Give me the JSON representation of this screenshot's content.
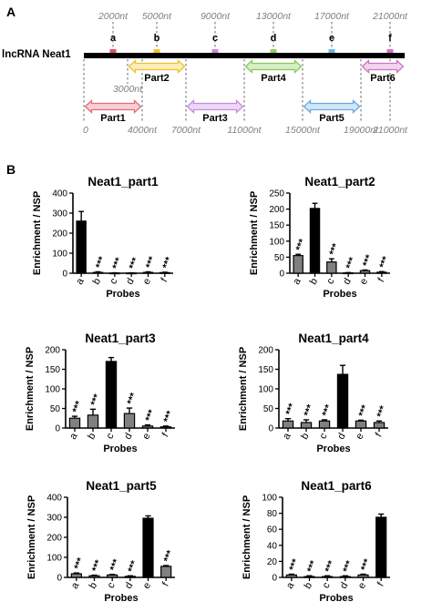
{
  "panel_a": {
    "label": "A",
    "gene_label": "lncRNA Neat1",
    "probe_positions": [
      {
        "letter": "a",
        "nt": 2000,
        "text": "2000nt",
        "color": "#e0506a"
      },
      {
        "letter": "b",
        "nt": 5000,
        "text": "5000nt",
        "color": "#f2c22a"
      },
      {
        "letter": "c",
        "nt": 9000,
        "text": "9000nt",
        "color": "#c98be0"
      },
      {
        "letter": "d",
        "nt": 13000,
        "text": "13000nt",
        "color": "#8fd060"
      },
      {
        "letter": "e",
        "nt": 17000,
        "text": "17000nt",
        "color": "#6cb6e6"
      },
      {
        "letter": "f",
        "nt": 21000,
        "text": "21000nt",
        "color": "#d070c8"
      }
    ],
    "parts": [
      {
        "name": "Part1",
        "start": 0,
        "end": 4000,
        "row": "lower",
        "color": "#e86a7a",
        "fill": "#f7d0d6"
      },
      {
        "name": "Part2",
        "start": 3000,
        "end": 7000,
        "row": "upper",
        "color": "#f0c030",
        "fill": "#fbefb8"
      },
      {
        "name": "Part3",
        "start": 7000,
        "end": 11000,
        "row": "lower",
        "color": "#c88ae0",
        "fill": "#ecd8f4"
      },
      {
        "name": "Part4",
        "start": 11000,
        "end": 15000,
        "row": "upper",
        "color": "#86c85a",
        "fill": "#d6efc6"
      },
      {
        "name": "Part5",
        "start": 15000,
        "end": 19000,
        "row": "lower",
        "color": "#6aa8e0",
        "fill": "#d2e6f6"
      },
      {
        "name": "Part6",
        "start": 19000,
        "end": 22000,
        "row": "upper",
        "color": "#d070c8",
        "fill": "#f2d4ee"
      }
    ],
    "coord_labels_upper": [
      {
        "nt": 3000,
        "text": "3000nt"
      }
    ],
    "coord_labels_lower": [
      {
        "nt": 0,
        "text": "0"
      },
      {
        "nt": 4000,
        "text": "4000nt"
      },
      {
        "nt": 7000,
        "text": "7000nt"
      },
      {
        "nt": 11000,
        "text": "11000nt"
      },
      {
        "nt": 15000,
        "text": "15000nt"
      },
      {
        "nt": 19000,
        "text": "19000nt"
      },
      {
        "nt": 21000,
        "text": "21000nt"
      }
    ]
  },
  "panel_b": {
    "label": "B"
  },
  "chart_data": [
    {
      "type": "bar",
      "title": "Neat1_part1",
      "ylabel": "Enrichment / NSP",
      "xlabel": "Probes",
      "categories": [
        "a",
        "b",
        "c",
        "d",
        "e",
        "f"
      ],
      "values": [
        260,
        4,
        1,
        1,
        4,
        3
      ],
      "errors": [
        48,
        3,
        1,
        1,
        3,
        2
      ],
      "highlight": [
        0
      ],
      "significance": [
        "",
        "***",
        "***",
        "***",
        "***",
        "***"
      ],
      "ylim": [
        0,
        400
      ],
      "yticks": [
        0,
        100,
        200,
        300,
        400
      ],
      "colors": {
        "highlight": "#000000",
        "other": "#808080"
      }
    },
    {
      "type": "bar",
      "title": "Neat1_part2",
      "ylabel": "Enrichment / NSP",
      "xlabel": "Probes",
      "categories": [
        "a",
        "b",
        "c",
        "d",
        "e",
        "f"
      ],
      "values": [
        55,
        202,
        35,
        1,
        8,
        3
      ],
      "errors": [
        4,
        16,
        10,
        1,
        2,
        2
      ],
      "highlight": [
        1
      ],
      "significance": [
        "***",
        "",
        "***",
        "***",
        "***",
        "***"
      ],
      "ylim": [
        0,
        250
      ],
      "yticks": [
        0,
        50,
        100,
        150,
        200,
        250
      ],
      "colors": {
        "highlight": "#000000",
        "other": "#808080"
      }
    },
    {
      "type": "bar",
      "title": "Neat1_part3",
      "ylabel": "Enrichment / NSP",
      "xlabel": "Probes",
      "categories": [
        "a",
        "b",
        "c",
        "d",
        "e",
        "f"
      ],
      "values": [
        25,
        33,
        170,
        37,
        5,
        3
      ],
      "errors": [
        5,
        15,
        10,
        14,
        3,
        2
      ],
      "highlight": [
        2
      ],
      "significance": [
        "***",
        "***",
        "",
        "***",
        "***",
        "***"
      ],
      "ylim": [
        0,
        200
      ],
      "yticks": [
        0,
        50,
        100,
        150,
        200
      ],
      "colors": {
        "highlight": "#000000",
        "other": "#808080"
      }
    },
    {
      "type": "bar",
      "title": "Neat1_part4",
      "ylabel": "Enrichment / NSP",
      "xlabel": "Probes",
      "categories": [
        "a",
        "b",
        "c",
        "d",
        "e",
        "f"
      ],
      "values": [
        18,
        14,
        18,
        137,
        18,
        14
      ],
      "errors": [
        6,
        7,
        3,
        23,
        2,
        4
      ],
      "highlight": [
        3
      ],
      "significance": [
        "***",
        "***",
        "***",
        "",
        "***",
        "***"
      ],
      "ylim": [
        0,
        200
      ],
      "yticks": [
        0,
        50,
        100,
        150,
        200
      ],
      "colors": {
        "highlight": "#000000",
        "other": "#808080"
      }
    },
    {
      "type": "bar",
      "title": "Neat1_part5",
      "ylabel": "Enrichment / NSP",
      "xlabel": "Probes",
      "categories": [
        "a",
        "b",
        "c",
        "d",
        "e",
        "f"
      ],
      "values": [
        18,
        8,
        12,
        5,
        295,
        55
      ],
      "errors": [
        4,
        3,
        3,
        3,
        12,
        4
      ],
      "highlight": [
        4
      ],
      "significance": [
        "***",
        "***",
        "***",
        "***",
        "",
        "***"
      ],
      "ylim": [
        0,
        400
      ],
      "yticks": [
        0,
        100,
        200,
        300,
        400
      ],
      "colors": {
        "highlight": "#000000",
        "other": "#808080"
      }
    },
    {
      "type": "bar",
      "title": "Neat1_part6",
      "ylabel": "Enrichment / NSP",
      "xlabel": "Probes",
      "categories": [
        "a",
        "b",
        "c",
        "d",
        "e",
        "f"
      ],
      "values": [
        3,
        1,
        1,
        1,
        3,
        75
      ],
      "errors": [
        1,
        1,
        1,
        1,
        1,
        4
      ],
      "highlight": [
        5
      ],
      "significance": [
        "***",
        "***",
        "***",
        "***",
        "***",
        ""
      ],
      "ylim": [
        0,
        100
      ],
      "yticks": [
        0,
        20,
        40,
        60,
        80,
        100
      ],
      "colors": {
        "highlight": "#000000",
        "other": "#808080"
      }
    }
  ]
}
